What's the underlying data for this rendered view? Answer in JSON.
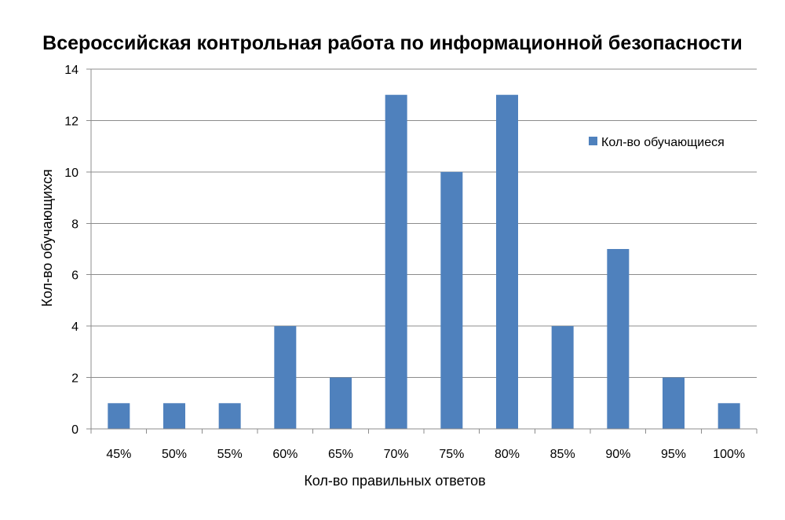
{
  "chart_data": {
    "type": "bar",
    "title": "Всероссийская контрольная работа по информационной безопасности",
    "xlabel": "Кол-во правильных ответов",
    "ylabel": "Кол-во обучающихся",
    "categories": [
      "45%",
      "50%",
      "55%",
      "60%",
      "65%",
      "70%",
      "75%",
      "80%",
      "85%",
      "90%",
      "95%",
      "100%"
    ],
    "series": [
      {
        "name": "Кол-во обучающиеся",
        "values": [
          1,
          1,
          1,
          4,
          2,
          13,
          10,
          13,
          4,
          7,
          2,
          1
        ],
        "color": "#4F81BD"
      }
    ],
    "ylim": [
      0,
      14
    ],
    "yticks": [
      0,
      2,
      4,
      6,
      8,
      10,
      12,
      14
    ],
    "grid": true,
    "legend_position": "right"
  }
}
